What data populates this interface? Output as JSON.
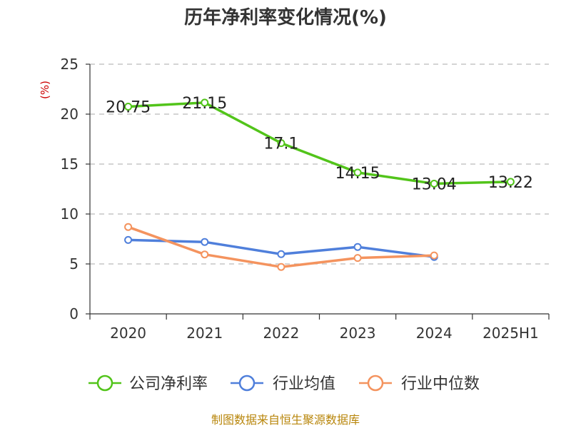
{
  "chart_data": {
    "type": "line",
    "title": "历年净利率变化情况(%)",
    "ylabel": "(%)",
    "xlabel": "",
    "categories": [
      "2020",
      "2021",
      "2022",
      "2023",
      "2024",
      "2025H1"
    ],
    "ylim": [
      0,
      25
    ],
    "yticks": [
      "0",
      "5",
      "10",
      "15",
      "20",
      "25"
    ],
    "grid": true,
    "legend_position": "bottom",
    "series": [
      {
        "name": "公司净利率",
        "color": "#52c41a",
        "values": [
          20.75,
          21.15,
          17.1,
          14.15,
          13.04,
          13.22
        ],
        "labels": [
          "20.75",
          "21.15",
          "17.1",
          "14.15",
          "13.04",
          "13.22"
        ]
      },
      {
        "name": "行业均值",
        "color": "#4f7fdb",
        "values": [
          7.4,
          7.2,
          5.98,
          6.7,
          5.7,
          null
        ]
      },
      {
        "name": "行业中位数",
        "color": "#f4935e",
        "values": [
          8.7,
          5.95,
          4.7,
          5.6,
          5.85,
          null
        ]
      }
    ],
    "source": "制图数据来自恒生聚源数据库"
  }
}
